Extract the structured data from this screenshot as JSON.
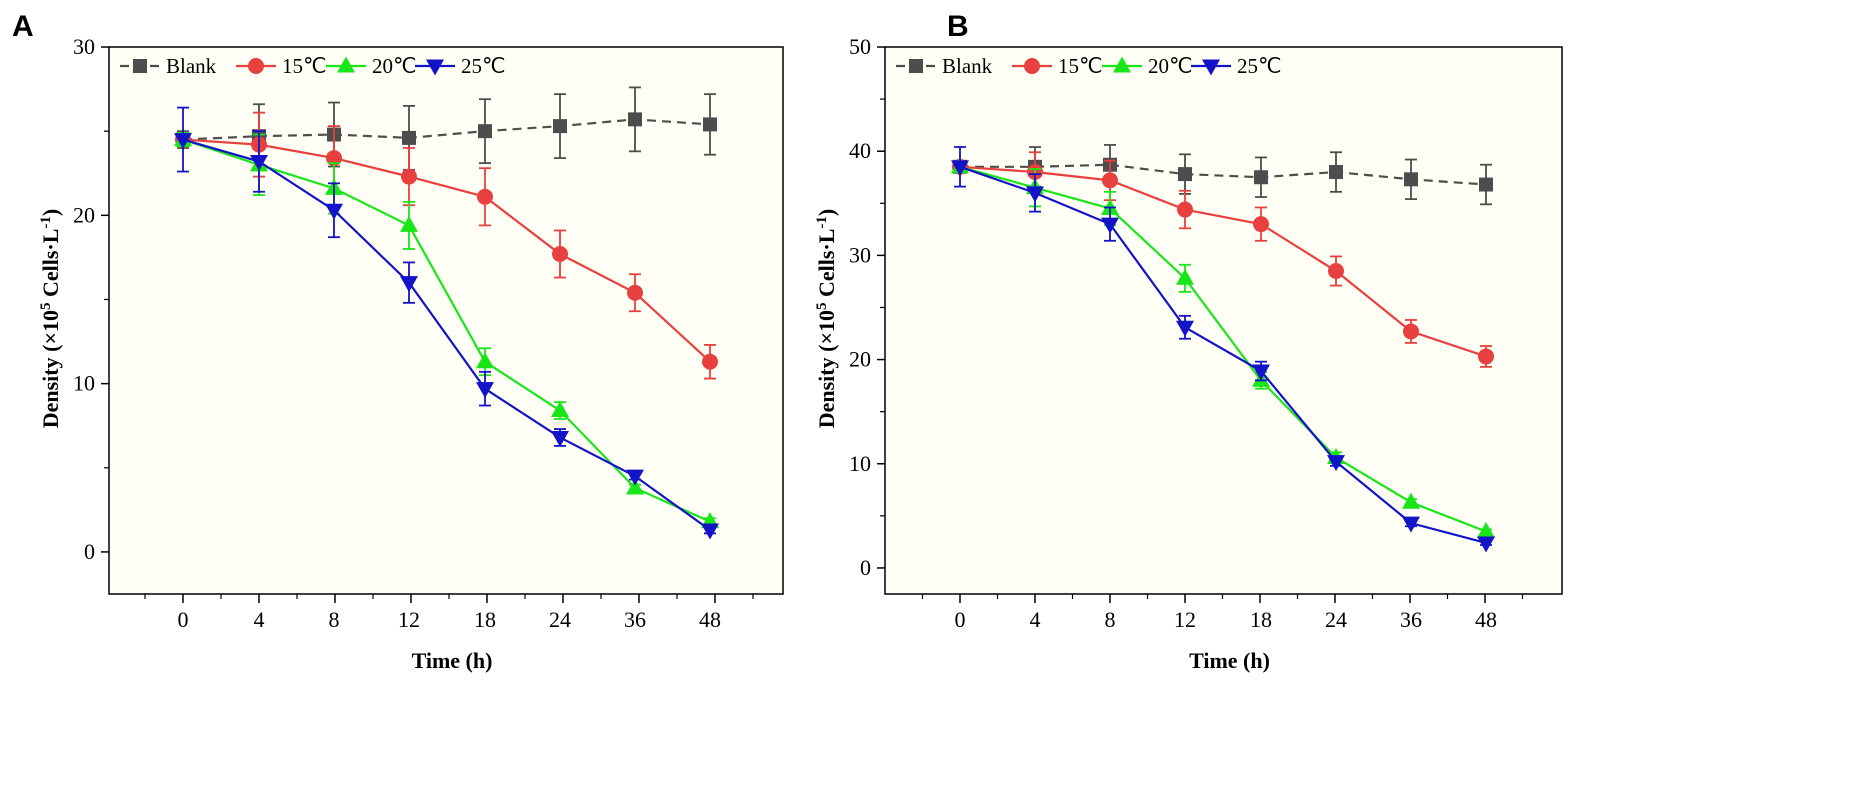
{
  "figure": {
    "panel_labels": [
      "A",
      "B"
    ]
  },
  "chart_data": [
    {
      "panel": "A",
      "type": "line",
      "title": "",
      "xlabel": "Time (h)",
      "ylabel_main": "Density (×10",
      "ylabel_sup1": "5",
      "ylabel_mid": " Cells·L",
      "ylabel_sup2": "-1",
      "ylabel_end": ")",
      "categories": [
        "0",
        "4",
        "8",
        "12",
        "18",
        "24",
        "36",
        "48"
      ],
      "ylim": [
        -2.5,
        30
      ],
      "yticks": [
        0,
        10,
        20,
        30
      ],
      "legend_position": "top-left",
      "series": [
        {
          "name": "Blank",
          "color": "#4d4d4d",
          "marker": "square",
          "dash": true,
          "values": [
            24.5,
            24.7,
            24.8,
            24.6,
            25.0,
            25.3,
            25.7,
            25.4
          ],
          "errors": [
            0.5,
            1.9,
            1.9,
            1.9,
            1.9,
            1.9,
            1.9,
            1.8
          ]
        },
        {
          "name": "15℃",
          "color": "#e8403f",
          "marker": "circle",
          "dash": false,
          "values": [
            24.5,
            24.2,
            23.4,
            22.3,
            21.1,
            17.7,
            15.4,
            11.3
          ],
          "errors": [
            0.4,
            1.9,
            1.9,
            1.7,
            1.7,
            1.4,
            1.1,
            1.0
          ]
        },
        {
          "name": "20℃",
          "color": "#19e619",
          "marker": "triangle-up",
          "dash": false,
          "values": [
            24.5,
            23.0,
            21.6,
            19.4,
            11.3,
            8.4,
            3.8,
            1.8
          ],
          "errors": [
            0.4,
            1.8,
            1.5,
            1.4,
            0.8,
            0.5,
            0.2,
            0.2
          ]
        },
        {
          "name": "25℃",
          "color": "#1313c8",
          "marker": "triangle-down",
          "dash": false,
          "values": [
            24.5,
            23.2,
            20.3,
            16.0,
            9.7,
            6.8,
            4.5,
            1.3
          ],
          "errors": [
            1.9,
            1.8,
            1.6,
            1.2,
            1.0,
            0.5,
            0.2,
            0.2
          ]
        }
      ]
    },
    {
      "panel": "B",
      "type": "line",
      "title": "",
      "xlabel": "Time (h)",
      "ylabel_main": "Density (×10",
      "ylabel_sup1": "5",
      "ylabel_mid": " Cells·L",
      "ylabel_sup2": "-1",
      "ylabel_end": ")",
      "categories": [
        "0",
        "4",
        "8",
        "12",
        "18",
        "24",
        "36",
        "48"
      ],
      "ylim": [
        -2.5,
        50
      ],
      "yticks": [
        0,
        10,
        20,
        30,
        40,
        50
      ],
      "legend_position": "top-left",
      "series": [
        {
          "name": "Blank",
          "color": "#4d4d4d",
          "marker": "square",
          "dash": true,
          "values": [
            38.5,
            38.5,
            38.7,
            37.8,
            37.5,
            38.0,
            37.3,
            36.8
          ],
          "errors": [
            0.4,
            1.9,
            1.9,
            1.9,
            1.9,
            1.9,
            1.9,
            1.9
          ]
        },
        {
          "name": "15℃",
          "color": "#e8403f",
          "marker": "circle",
          "dash": false,
          "values": [
            38.5,
            38.0,
            37.2,
            34.4,
            33.0,
            28.5,
            22.7,
            20.3
          ],
          "errors": [
            0.4,
            1.9,
            1.9,
            1.8,
            1.6,
            1.4,
            1.1,
            1.0
          ]
        },
        {
          "name": "20℃",
          "color": "#19e619",
          "marker": "triangle-up",
          "dash": false,
          "values": [
            38.5,
            36.5,
            34.5,
            27.8,
            18.0,
            10.6,
            6.3,
            3.5
          ],
          "errors": [
            0.4,
            1.8,
            1.6,
            1.3,
            0.8,
            0.5,
            0.3,
            0.2
          ]
        },
        {
          "name": "25℃",
          "color": "#1313c8",
          "marker": "triangle-down",
          "dash": false,
          "values": [
            38.5,
            36.0,
            33.0,
            23.1,
            18.9,
            10.2,
            4.3,
            2.4
          ],
          "errors": [
            1.9,
            1.8,
            1.6,
            1.1,
            0.9,
            0.4,
            0.3,
            0.2
          ]
        }
      ]
    }
  ]
}
